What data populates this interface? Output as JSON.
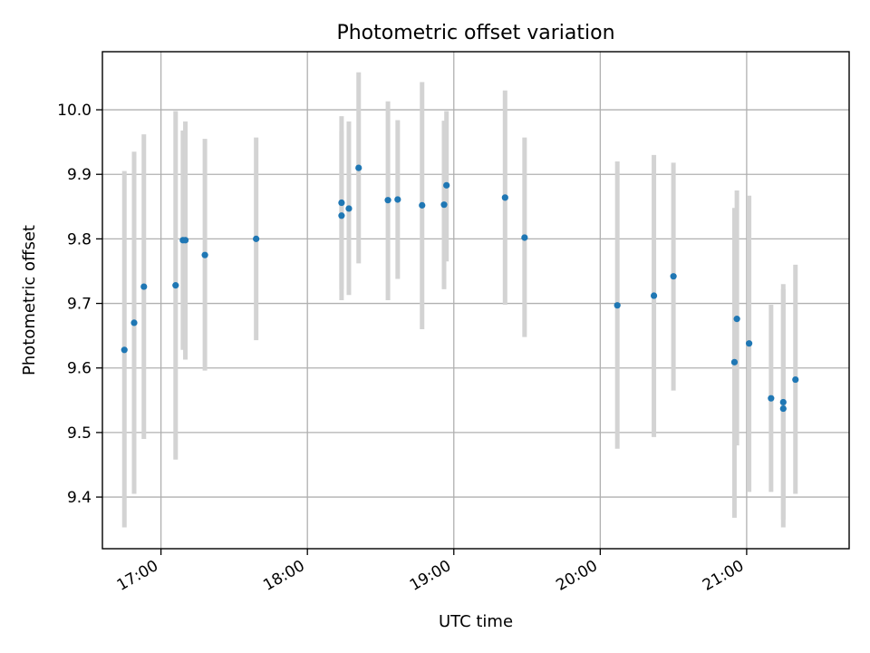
{
  "chart_data": {
    "type": "scatter",
    "title": "Photometric offset variation",
    "xlabel": "UTC time",
    "ylabel": "Photometric offset",
    "xlim": [
      "16:36",
      "21:42"
    ],
    "ylim": [
      9.32,
      10.09
    ],
    "xticks": [
      {
        "time": "17:00",
        "label": "17:00"
      },
      {
        "time": "18:00",
        "label": "18:00"
      },
      {
        "time": "19:00",
        "label": "19:00"
      },
      {
        "time": "20:00",
        "label": "20:00"
      },
      {
        "time": "21:00",
        "label": "21:00"
      }
    ],
    "yticks": [
      {
        "value": 9.4,
        "label": "9.4"
      },
      {
        "value": 9.5,
        "label": "9.5"
      },
      {
        "value": 9.6,
        "label": "9.6"
      },
      {
        "value": 9.7,
        "label": "9.7"
      },
      {
        "value": 9.8,
        "label": "9.8"
      },
      {
        "value": 9.9,
        "label": "9.9"
      },
      {
        "value": 10.0,
        "label": "10.0"
      }
    ],
    "grid": true,
    "colors": {
      "marker": "#1f77b4",
      "errorbar": "#d3d3d3"
    },
    "points": [
      {
        "time": "16:45",
        "y": 9.628,
        "err_low": 9.353,
        "err_high": 9.905
      },
      {
        "time": "16:49",
        "y": 9.67,
        "err_low": 9.405,
        "err_high": 9.935
      },
      {
        "time": "16:53",
        "y": 9.726,
        "err_low": 9.49,
        "err_high": 9.962
      },
      {
        "time": "17:06",
        "y": 9.728,
        "err_low": 9.458,
        "err_high": 9.998
      },
      {
        "time": "17:09",
        "y": 9.798,
        "err_low": 9.628,
        "err_high": 9.968
      },
      {
        "time": "17:10",
        "y": 9.798,
        "err_low": 9.613,
        "err_high": 9.982
      },
      {
        "time": "17:18",
        "y": 9.775,
        "err_low": 9.596,
        "err_high": 9.955
      },
      {
        "time": "17:39",
        "y": 9.8,
        "err_low": 9.643,
        "err_high": 9.957
      },
      {
        "time": "18:14",
        "y": 9.856,
        "err_low": 9.722,
        "err_high": 9.99
      },
      {
        "time": "18:14",
        "y": 9.836,
        "err_low": 9.705,
        "err_high": 9.967
      },
      {
        "time": "18:17",
        "y": 9.847,
        "err_low": 9.713,
        "err_high": 9.982
      },
      {
        "time": "18:21",
        "y": 9.91,
        "err_low": 9.762,
        "err_high": 10.058
      },
      {
        "time": "18:33",
        "y": 9.86,
        "err_low": 9.705,
        "err_high": 10.013
      },
      {
        "time": "18:37",
        "y": 9.861,
        "err_low": 9.738,
        "err_high": 9.984
      },
      {
        "time": "18:47",
        "y": 9.852,
        "err_low": 9.66,
        "err_high": 10.043
      },
      {
        "time": "18:56",
        "y": 9.853,
        "err_low": 9.722,
        "err_high": 9.983
      },
      {
        "time": "18:57",
        "y": 9.883,
        "err_low": 9.765,
        "err_high": 9.998
      },
      {
        "time": "19:21",
        "y": 9.864,
        "err_low": 9.698,
        "err_high": 10.03
      },
      {
        "time": "19:29",
        "y": 9.802,
        "err_low": 9.648,
        "err_high": 9.957
      },
      {
        "time": "20:07",
        "y": 9.697,
        "err_low": 9.475,
        "err_high": 9.92
      },
      {
        "time": "20:22",
        "y": 9.712,
        "err_low": 9.493,
        "err_high": 9.93
      },
      {
        "time": "20:30",
        "y": 9.742,
        "err_low": 9.565,
        "err_high": 9.918
      },
      {
        "time": "20:55",
        "y": 9.609,
        "err_low": 9.368,
        "err_high": 9.848
      },
      {
        "time": "20:56",
        "y": 9.676,
        "err_low": 9.48,
        "err_high": 9.875
      },
      {
        "time": "21:01",
        "y": 9.638,
        "err_low": 9.408,
        "err_high": 9.867
      },
      {
        "time": "21:10",
        "y": 9.553,
        "err_low": 9.408,
        "err_high": 9.698
      },
      {
        "time": "21:15",
        "y": 9.547,
        "err_low": 9.365,
        "err_high": 9.73
      },
      {
        "time": "21:15",
        "y": 9.537,
        "err_low": 9.353,
        "err_high": 9.722
      },
      {
        "time": "21:20",
        "y": 9.582,
        "err_low": 9.405,
        "err_high": 9.76
      }
    ]
  }
}
